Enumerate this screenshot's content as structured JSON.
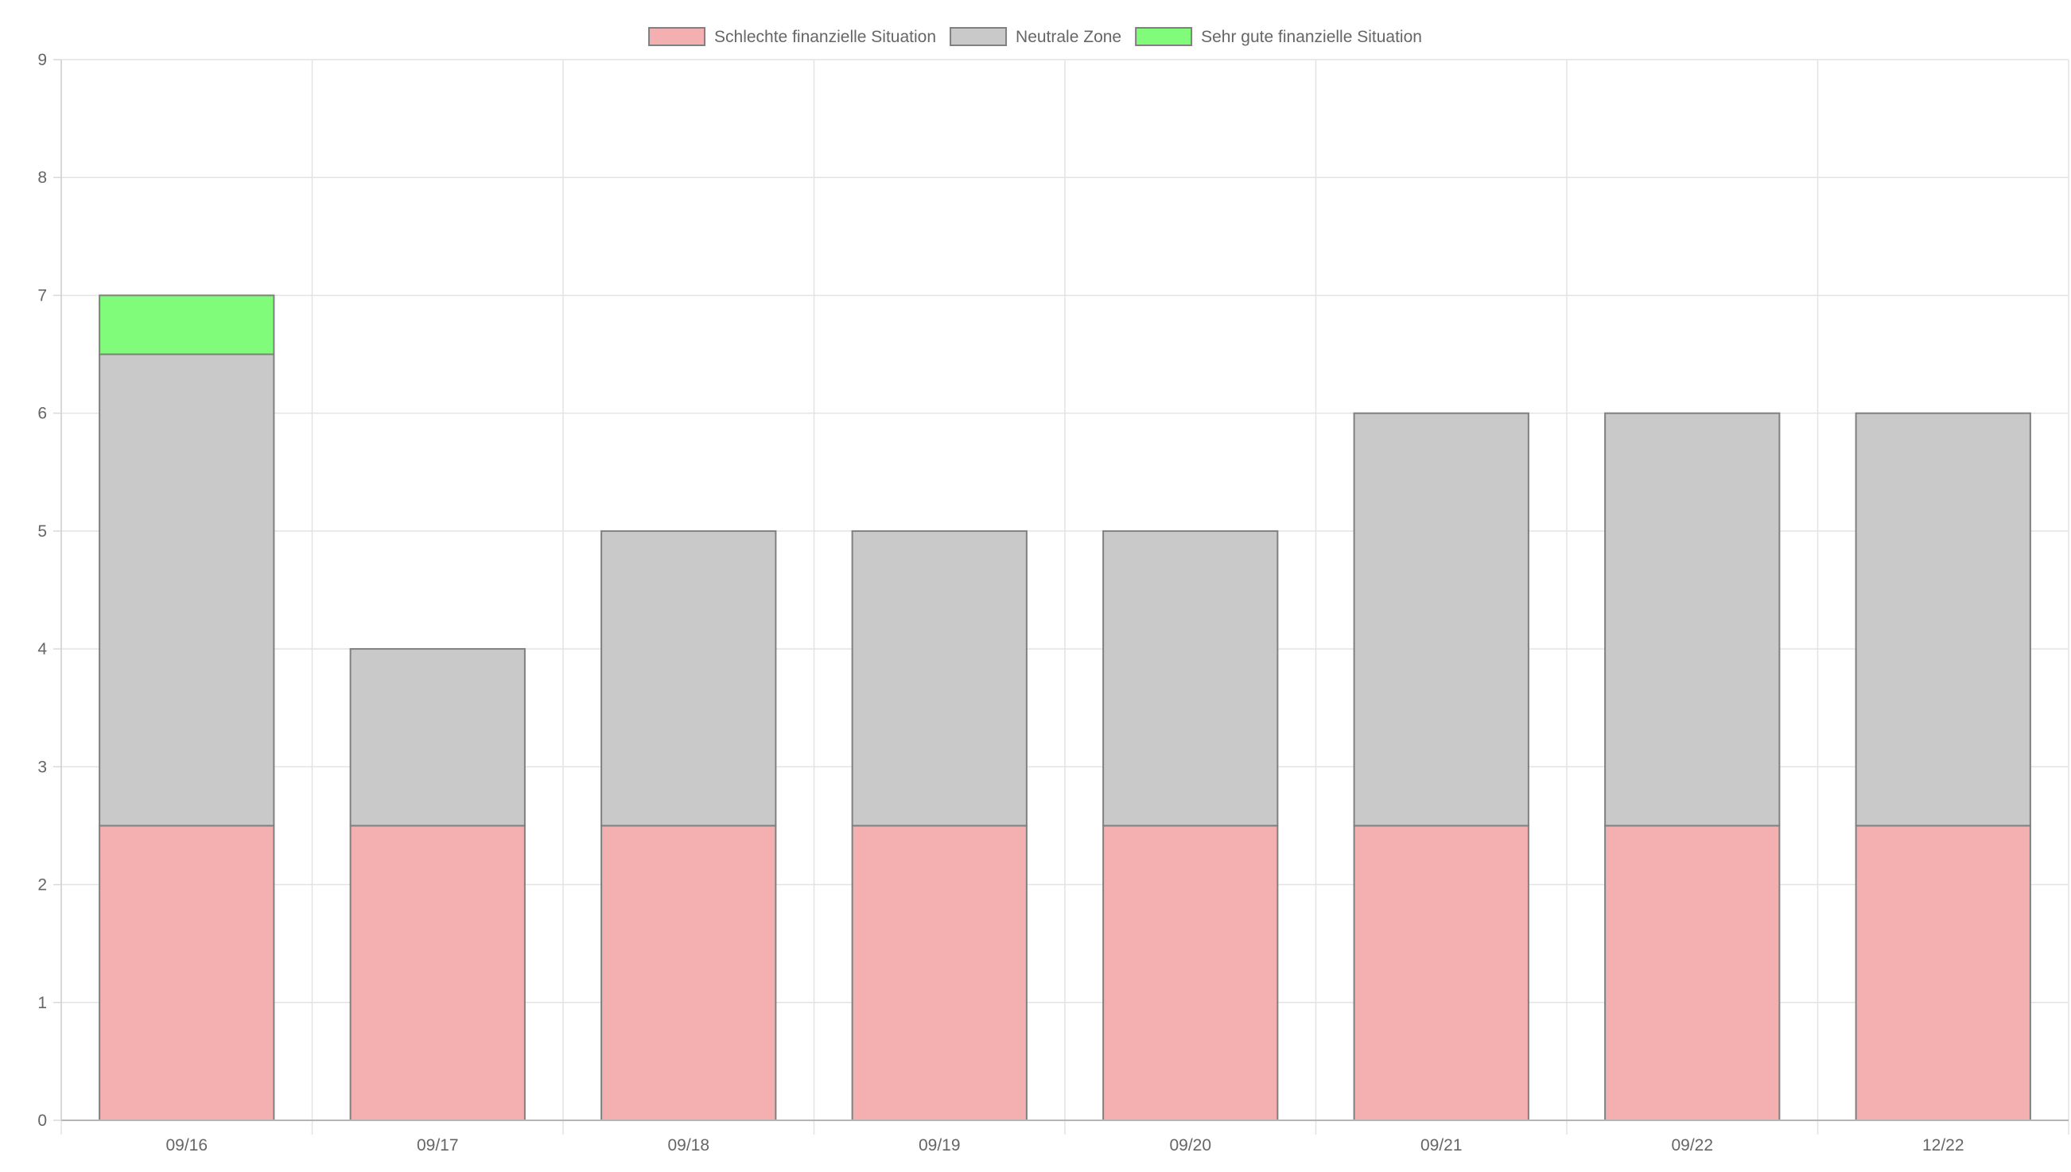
{
  "chart_data": {
    "type": "bar",
    "stacked": true,
    "categories": [
      "09/16",
      "09/17",
      "09/18",
      "09/19",
      "09/20",
      "09/21",
      "09/22",
      "12/22"
    ],
    "series": [
      {
        "name": "Schlechte finanzielle Situation",
        "color": "#f4b0b0",
        "values": [
          2.5,
          2.5,
          2.5,
          2.5,
          2.5,
          2.5,
          2.5,
          2.5
        ]
      },
      {
        "name": "Neutrale Zone",
        "color": "#c9c9c9",
        "values": [
          4,
          1.5,
          2.5,
          2.5,
          2.5,
          3.5,
          3.5,
          3.5
        ]
      },
      {
        "name": "Sehr gute finanzielle Situation",
        "color": "#80fc7a",
        "values": [
          0.5,
          0,
          0,
          0,
          0,
          0,
          0,
          0
        ]
      }
    ],
    "yticks": [
      "0",
      "1",
      "2",
      "3",
      "4",
      "5",
      "6",
      "7",
      "8",
      "9"
    ],
    "ylim": [
      0,
      9
    ],
    "grid": true,
    "legend_position": "top",
    "bar_border_color": "#808080"
  }
}
